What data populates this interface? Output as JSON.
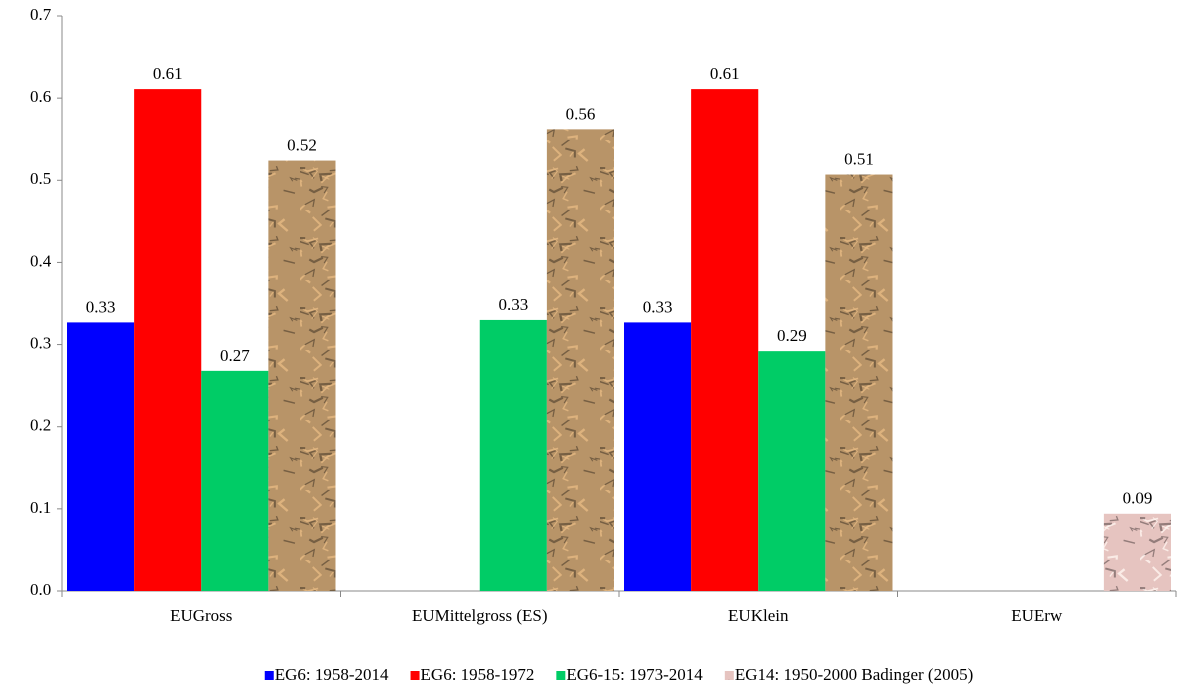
{
  "chart_data": {
    "type": "bar",
    "categories": [
      "EUGross",
      "EUMittelgross (ES)",
      "EUKlein",
      "EUErw"
    ],
    "series": [
      {
        "name": "EG6: 1958-2014",
        "color": "#0000ff",
        "values": [
          0.327,
          null,
          0.327,
          null
        ],
        "value_labels": [
          "0.33",
          null,
          "0.33",
          null
        ]
      },
      {
        "name": "EG6: 1958-1972",
        "color": "#ff0000",
        "values": [
          0.611,
          null,
          0.611,
          null
        ],
        "value_labels": [
          "0.61",
          null,
          "0.61",
          null
        ]
      },
      {
        "name": "EG6-15: 1973-2014",
        "color": "#00cc66",
        "values": [
          0.268,
          0.33,
          0.292,
          null
        ],
        "value_labels": [
          "0.27",
          "0.33",
          "0.29",
          null
        ]
      },
      {
        "name": "EG14: 1950-2000 Badinger (2005)",
        "color": "#b89468",
        "texture": true,
        "point_colors": [
          "#b89468",
          "#b89468",
          "#b89468",
          "#e6c4c0"
        ],
        "values": [
          0.524,
          0.562,
          0.507,
          0.094
        ],
        "value_labels": [
          "0.52",
          "0.56",
          "0.51",
          "0.09"
        ]
      }
    ],
    "ylim": [
      0,
      0.7
    ],
    "yticks": [
      {
        "value": 0,
        "label": "0.0"
      },
      0.1,
      0.2,
      0.3,
      0.4,
      0.5,
      0.6,
      0.7
    ],
    "grid": false,
    "legend": "bottom"
  }
}
